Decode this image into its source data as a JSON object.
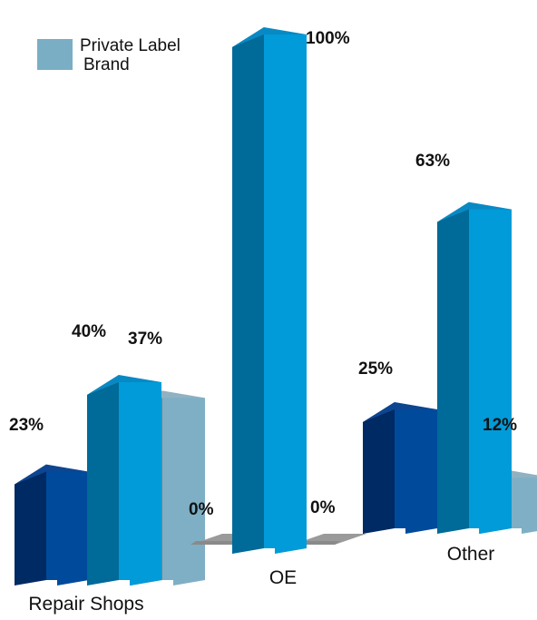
{
  "chart_data": {
    "type": "bar",
    "style": "3d",
    "categories": [
      "Repair Shops",
      "OE",
      "Other"
    ],
    "series": [
      {
        "name": "",
        "values": [
          23,
          0,
          25
        ],
        "color": "#003a8c"
      },
      {
        "name": "",
        "values": [
          40,
          100,
          63
        ],
        "color": "#0096d6"
      },
      {
        "name": "Private Label Brand",
        "values": [
          37,
          0,
          12
        ],
        "color": "#7aaec4"
      }
    ],
    "data_labels": [
      [
        "23%",
        "0%",
        "25%"
      ],
      [
        "40%",
        "100%",
        "63%"
      ],
      [
        "37%",
        "0%",
        "12%"
      ]
    ],
    "legend": {
      "position": "top-left",
      "lines": [
        "Private Label",
        "Brand"
      ]
    },
    "ylim": [
      0,
      100
    ],
    "grid": false
  }
}
